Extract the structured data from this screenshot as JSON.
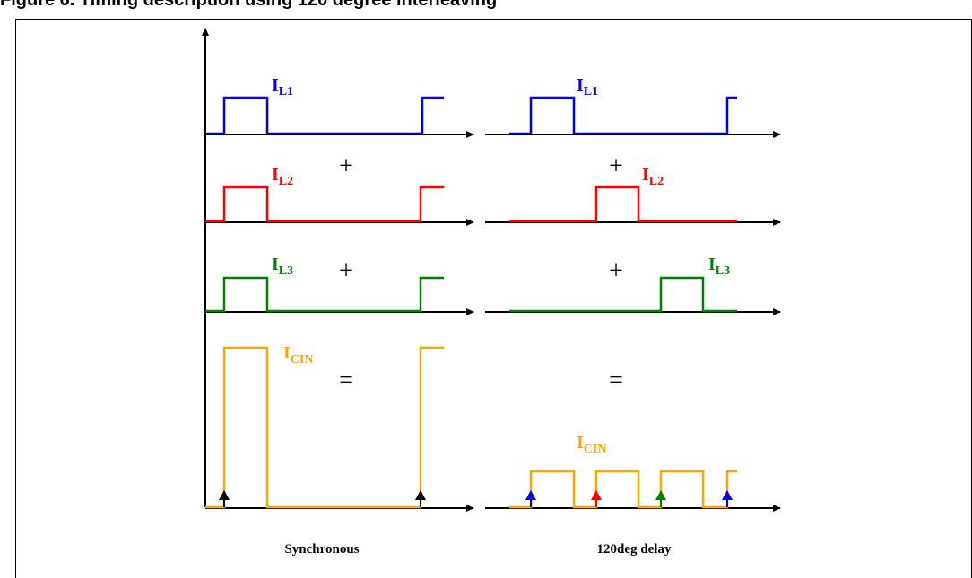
{
  "title": "Figure 6. Timing description using 120 degree interleaving",
  "diagram": {
    "labels": {
      "il1_main": "I",
      "il1_sub": "L1",
      "il2_main": "I",
      "il2_sub": "L2",
      "il3_main": "I",
      "il3_sub": "L3",
      "icin_main": "I",
      "icin_sub": "CIN",
      "plus": "+",
      "equals": "=",
      "synchronous": "Synchronous",
      "delay": "120deg delay"
    },
    "colors": {
      "il1": "#0000ff",
      "il2": "#ff0000",
      "il3": "#008000",
      "icin": "#ffa500",
      "axis": "#000000"
    }
  }
}
